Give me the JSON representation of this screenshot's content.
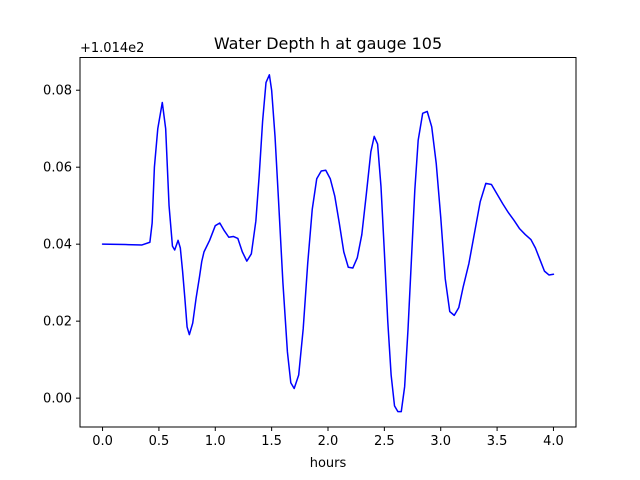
{
  "chart_data": {
    "type": "line",
    "title": "Water Depth h at gauge 105",
    "xlabel": "hours",
    "ylabel": "",
    "y_offset_label": "+1.014e2",
    "xlim": [
      -0.2,
      4.2
    ],
    "ylim": [
      -0.0075,
      0.0885
    ],
    "grid": false,
    "xticks": [
      0.0,
      0.5,
      1.0,
      1.5,
      2.0,
      2.5,
      3.0,
      3.5,
      4.0
    ],
    "xtick_labels": [
      "0.0",
      "0.5",
      "1.0",
      "1.5",
      "2.0",
      "2.5",
      "3.0",
      "3.5",
      "4.0"
    ],
    "yticks": [
      0.0,
      0.02,
      0.04,
      0.06,
      0.08
    ],
    "ytick_labels": [
      "0.00",
      "0.02",
      "0.04",
      "0.06",
      "0.08"
    ],
    "series": [
      {
        "color": "#0000ff",
        "x": [
          0.0,
          0.2,
          0.35,
          0.42,
          0.44,
          0.46,
          0.49,
          0.53,
          0.56,
          0.59,
          0.62,
          0.64,
          0.67,
          0.69,
          0.71,
          0.73,
          0.75,
          0.77,
          0.8,
          0.83,
          0.86,
          0.88,
          0.9,
          0.95,
          1.0,
          1.04,
          1.08,
          1.12,
          1.16,
          1.2,
          1.24,
          1.28,
          1.32,
          1.36,
          1.39,
          1.42,
          1.45,
          1.48,
          1.5,
          1.53,
          1.56,
          1.6,
          1.64,
          1.67,
          1.7,
          1.74,
          1.78,
          1.82,
          1.86,
          1.9,
          1.94,
          1.98,
          2.02,
          2.06,
          2.1,
          2.14,
          2.18,
          2.22,
          2.26,
          2.3,
          2.34,
          2.38,
          2.41,
          2.44,
          2.47,
          2.5,
          2.53,
          2.56,
          2.59,
          2.62,
          2.65,
          2.68,
          2.71,
          2.74,
          2.77,
          2.8,
          2.84,
          2.88,
          2.92,
          2.96,
          3.0,
          3.04,
          3.08,
          3.12,
          3.16,
          3.2,
          3.25,
          3.3,
          3.35,
          3.4,
          3.45,
          3.5,
          3.55,
          3.6,
          3.65,
          3.7,
          3.75,
          3.8,
          3.84,
          3.88,
          3.92,
          3.96,
          4.0
        ],
        "y": [
          0.04,
          0.0399,
          0.0398,
          0.0405,
          0.0455,
          0.06,
          0.07,
          0.0768,
          0.07,
          0.05,
          0.0395,
          0.0385,
          0.041,
          0.039,
          0.033,
          0.026,
          0.0185,
          0.0165,
          0.0195,
          0.026,
          0.0315,
          0.0355,
          0.038,
          0.041,
          0.0448,
          0.0455,
          0.0435,
          0.0418,
          0.042,
          0.0415,
          0.038,
          0.0356,
          0.0375,
          0.046,
          0.058,
          0.072,
          0.082,
          0.084,
          0.08,
          0.068,
          0.052,
          0.03,
          0.012,
          0.004,
          0.0025,
          0.006,
          0.018,
          0.035,
          0.049,
          0.057,
          0.059,
          0.0592,
          0.057,
          0.0525,
          0.0455,
          0.038,
          0.034,
          0.0338,
          0.0365,
          0.0425,
          0.053,
          0.064,
          0.068,
          0.066,
          0.055,
          0.038,
          0.02,
          0.006,
          -0.002,
          -0.0035,
          -0.0035,
          0.003,
          0.018,
          0.036,
          0.054,
          0.067,
          0.074,
          0.0745,
          0.0705,
          0.061,
          0.047,
          0.031,
          0.0225,
          0.0215,
          0.0235,
          0.029,
          0.035,
          0.043,
          0.051,
          0.0558,
          0.0555,
          0.053,
          0.0505,
          0.0482,
          0.0462,
          0.044,
          0.0425,
          0.0412,
          0.039,
          0.036,
          0.033,
          0.032,
          0.0322
        ]
      }
    ]
  }
}
